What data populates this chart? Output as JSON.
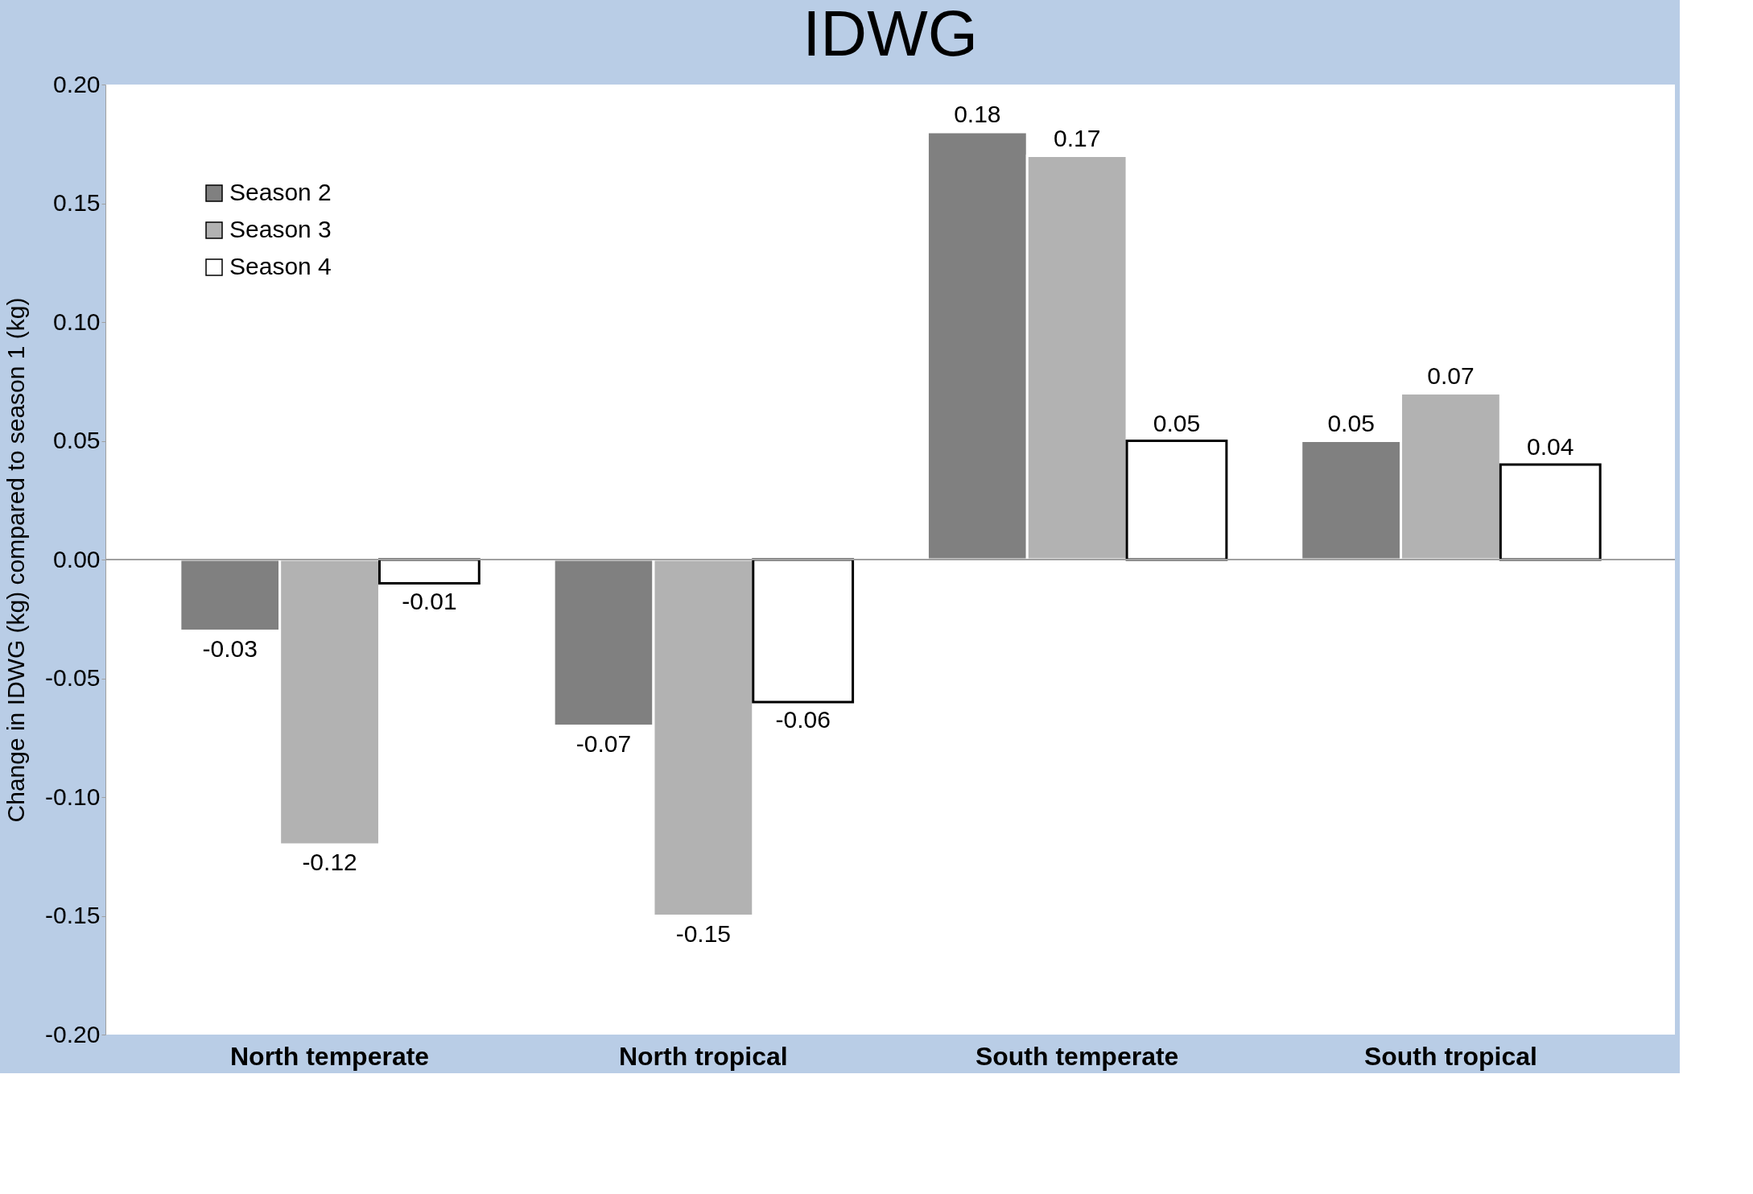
{
  "chart_data": {
    "type": "bar",
    "title": "IDWG",
    "ylabel": "Change in IDWG (kg) compared to season 1 (kg)",
    "categories": [
      "North temperate",
      "North tropical",
      "South temperate",
      "South tropical"
    ],
    "series": [
      {
        "name": "Season 2",
        "color": "#808080",
        "values": [
          -0.03,
          -0.07,
          0.18,
          0.05
        ]
      },
      {
        "name": "Season 3",
        "color": "#b2b2b2",
        "values": [
          -0.12,
          -0.15,
          0.17,
          0.07
        ]
      },
      {
        "name": "Season 4",
        "color": "#ffffff",
        "values": [
          -0.01,
          -0.06,
          0.05,
          0.04
        ]
      }
    ],
    "ylim": [
      -0.2,
      0.2
    ],
    "yticks": [
      {
        "value": -0.2,
        "label": "-0.20"
      },
      {
        "value": -0.15,
        "label": "-0.15"
      },
      {
        "value": -0.1,
        "label": "-0.10"
      },
      {
        "value": -0.05,
        "label": "-0.05"
      },
      {
        "value": 0,
        "label": "0.00"
      },
      {
        "value": 0.05,
        "label": "0.05"
      },
      {
        "value": 0.1,
        "label": "0.10"
      },
      {
        "value": 0.15,
        "label": "0.15"
      },
      {
        "value": 0.2,
        "label": "0.20"
      }
    ],
    "ref_lines": [
      {
        "axis": "y",
        "value": 0,
        "color": "#a0a0a0"
      }
    ],
    "data_labels": true,
    "grid": false,
    "legend": "top left"
  }
}
